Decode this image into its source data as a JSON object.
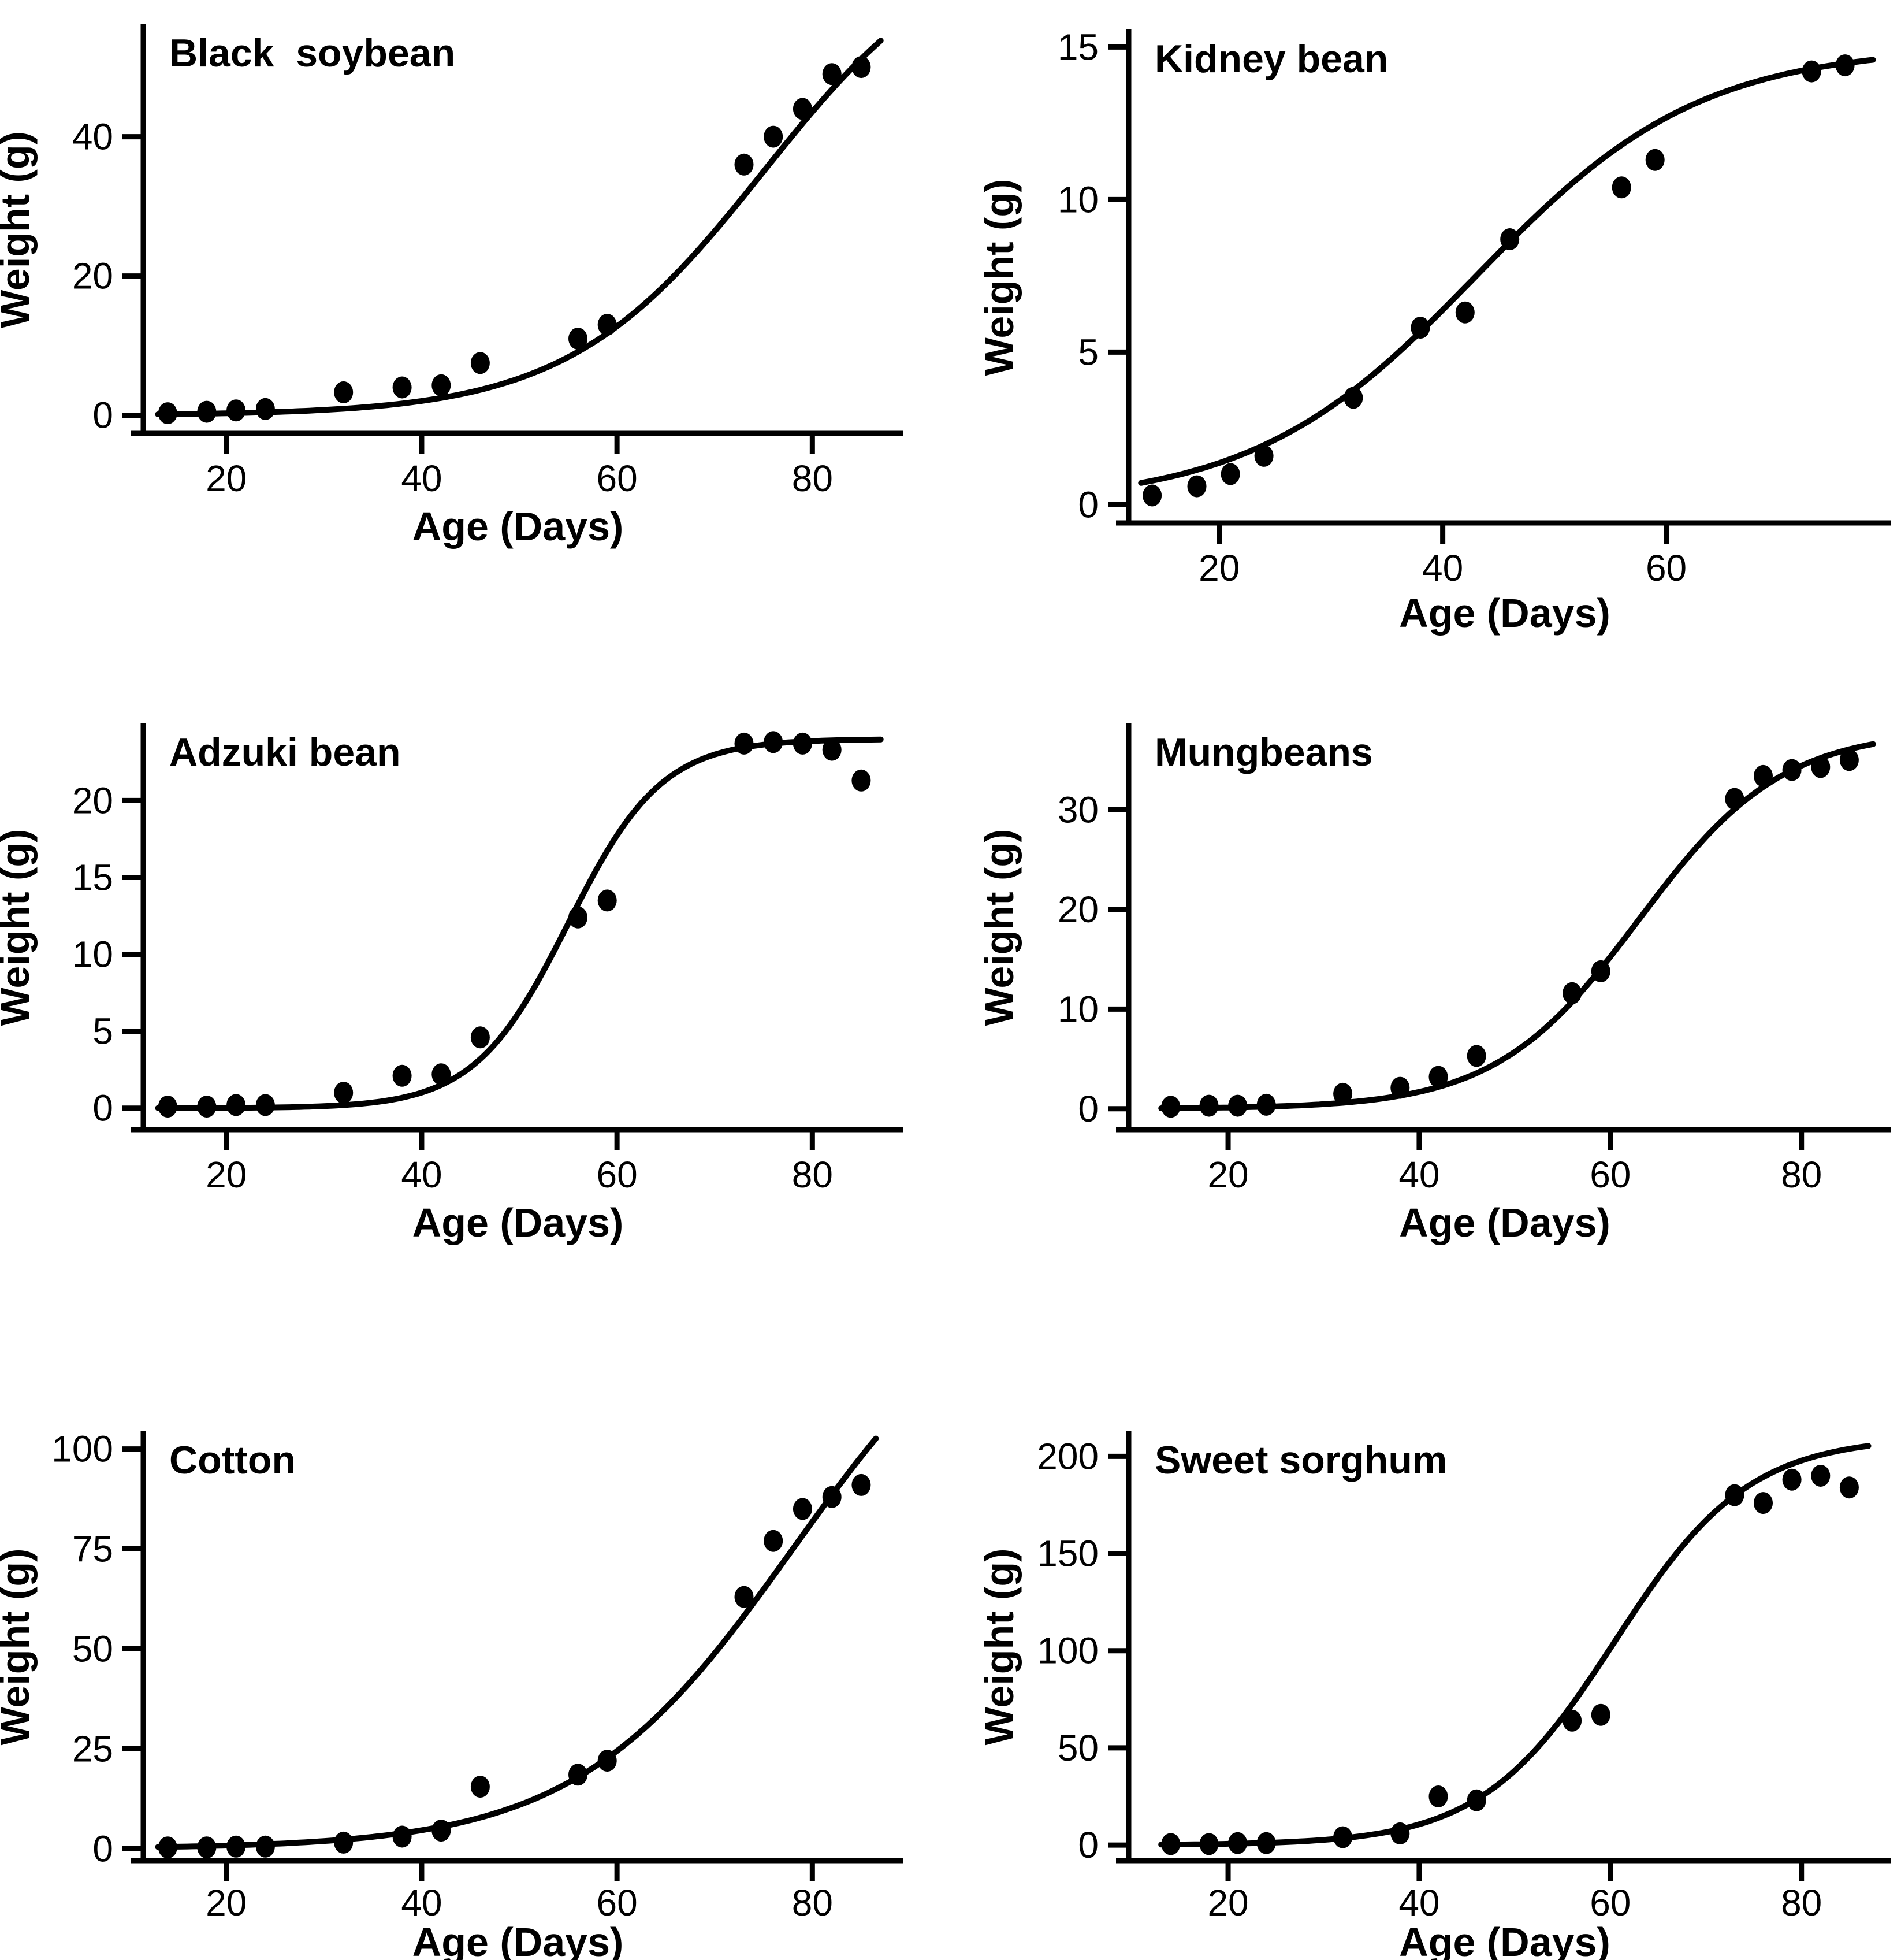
{
  "figure": {
    "background_color": "#ffffff",
    "foreground_color": "#000000",
    "layout": "2 columns x 3 rows of scatter panels with fitted sigmoid growth curves"
  },
  "chart_data": [
    {
      "type": "scatter",
      "title": "Black  soybean",
      "xlabel": "Age (Days)",
      "ylabel": "Weight (g)",
      "x": [
        14,
        18,
        21,
        24,
        32,
        38,
        42,
        46,
        56,
        59,
        73,
        76,
        79,
        82,
        85
      ],
      "y": [
        0.3,
        0.5,
        0.7,
        0.9,
        3.3,
        4.0,
        4.3,
        7.5,
        11.0,
        13.0,
        36.0,
        40.0,
        44.0,
        49.0,
        50.0
      ],
      "xticks": [
        20,
        40,
        60,
        80
      ],
      "yticks": [
        0,
        20,
        40
      ],
      "xlim": [
        11.5,
        88.2
      ],
      "ylim": [
        -2.6,
        55.9
      ],
      "grid": false,
      "legend": null,
      "fit_curve": {
        "type": "logistic",
        "A": 70,
        "xmid": 75,
        "scal": 10,
        "x_start": 13,
        "x_end": 87
      }
    },
    {
      "type": "scatter",
      "title": "Kidney bean",
      "xlabel": "Age (Days)",
      "ylabel": "Weight (g)",
      "x": [
        14,
        18,
        21,
        24,
        32,
        38,
        42,
        46,
        56,
        59,
        73,
        76
      ],
      "y": [
        0.3,
        0.6,
        1.0,
        1.6,
        3.5,
        5.8,
        6.3,
        8.7,
        10.4,
        11.3,
        14.2,
        14.4
      ],
      "xticks": [
        20,
        40,
        60
      ],
      "yticks": [
        0,
        5,
        10,
        15
      ],
      "xlim": [
        11.9,
        79.2
      ],
      "ylim": [
        -0.6,
        15.5
      ],
      "grid": false,
      "legend": null,
      "fit_curve": {
        "type": "logistic",
        "A": 15,
        "xmid": 43,
        "scal": 10,
        "x_start": 13,
        "x_end": 78.5
      }
    },
    {
      "type": "scatter",
      "title": "Adzuki bean",
      "xlabel": "Age (Days)",
      "ylabel": "Weight (g)",
      "x": [
        14,
        18,
        21,
        24,
        32,
        38,
        42,
        46,
        56,
        59,
        73,
        76,
        79,
        82,
        85
      ],
      "y": [
        0.1,
        0.1,
        0.2,
        0.2,
        1.0,
        2.1,
        2.2,
        4.6,
        12.4,
        13.5,
        23.7,
        23.8,
        23.7,
        23.3,
        21.3
      ],
      "xticks": [
        20,
        40,
        60,
        80
      ],
      "yticks": [
        0,
        5,
        10,
        15,
        20
      ],
      "xlim": [
        11.5,
        88.2
      ],
      "ylim": [
        -1.4,
        24.9
      ],
      "grid": false,
      "legend": null,
      "fit_curve": {
        "type": "logistic",
        "A": 24,
        "xmid": 55,
        "scal": 4.8,
        "x_start": 13,
        "x_end": 87
      }
    },
    {
      "type": "scatter",
      "title": "Mungbeans",
      "xlabel": "Age (Days)",
      "ylabel": "Weight (g)",
      "x": [
        14,
        18,
        21,
        24,
        32,
        38,
        42,
        46,
        56,
        59,
        73,
        76,
        79,
        82,
        85
      ],
      "y": [
        0.2,
        0.3,
        0.3,
        0.4,
        1.5,
        2.1,
        3.2,
        5.3,
        11.6,
        13.8,
        31.1,
        33.4,
        34.0,
        34.3,
        35.0
      ],
      "xticks": [
        20,
        40,
        60,
        80
      ],
      "yticks": [
        0,
        10,
        20,
        30
      ],
      "xlim": [
        9.6,
        88.3
      ],
      "ylim": [
        -2.1,
        38.5
      ],
      "grid": false,
      "legend": null,
      "fit_curve": {
        "type": "logistic",
        "A": 38,
        "xmid": 63,
        "scal": 7.5,
        "x_start": 13,
        "x_end": 87.5
      }
    },
    {
      "type": "scatter",
      "title": "Cotton",
      "xlabel": "Age (Days)",
      "ylabel": "Weight (g)",
      "x": [
        14,
        18,
        21,
        24,
        32,
        38,
        42,
        46,
        56,
        59,
        73,
        76,
        79,
        82,
        85
      ],
      "y": [
        0.3,
        0.3,
        0.5,
        0.5,
        1.5,
        3.0,
        4.5,
        15.5,
        18.5,
        22.0,
        63.0,
        77.0,
        85.0,
        88.0,
        91.0
      ],
      "xticks": [
        20,
        40,
        60,
        80
      ],
      "yticks": [
        0,
        25,
        50,
        75,
        100
      ],
      "xlim": [
        11.5,
        88.2
      ],
      "ylim": [
        -3.0,
        104
      ],
      "grid": false,
      "legend": null,
      "fit_curve": {
        "type": "logistic",
        "A": 150,
        "xmid": 78,
        "scal": 11,
        "x_start": 13,
        "x_end": 86.5
      }
    },
    {
      "type": "scatter",
      "title": "Sweet sorghum",
      "xlabel": "Age (Days)",
      "ylabel": "Weight (g)",
      "x": [
        14,
        18,
        21,
        24,
        32,
        38,
        42,
        46,
        56,
        59,
        73,
        76,
        79,
        82,
        85
      ],
      "y": [
        0.5,
        0.5,
        1.0,
        1.0,
        4.0,
        6.0,
        25.0,
        23.0,
        64.0,
        67.0,
        180.0,
        176.0,
        188.0,
        190.0,
        184.0
      ],
      "xticks": [
        20,
        40,
        60,
        80
      ],
      "yticks": [
        0,
        50,
        100,
        150,
        200
      ],
      "xlim": [
        9.6,
        88.3
      ],
      "ylim": [
        -8.0,
        212
      ],
      "grid": false,
      "legend": null,
      "fit_curve": {
        "type": "logistic",
        "A": 210,
        "xmid": 60.5,
        "scal": 7,
        "x_start": 13,
        "x_end": 87
      }
    }
  ]
}
